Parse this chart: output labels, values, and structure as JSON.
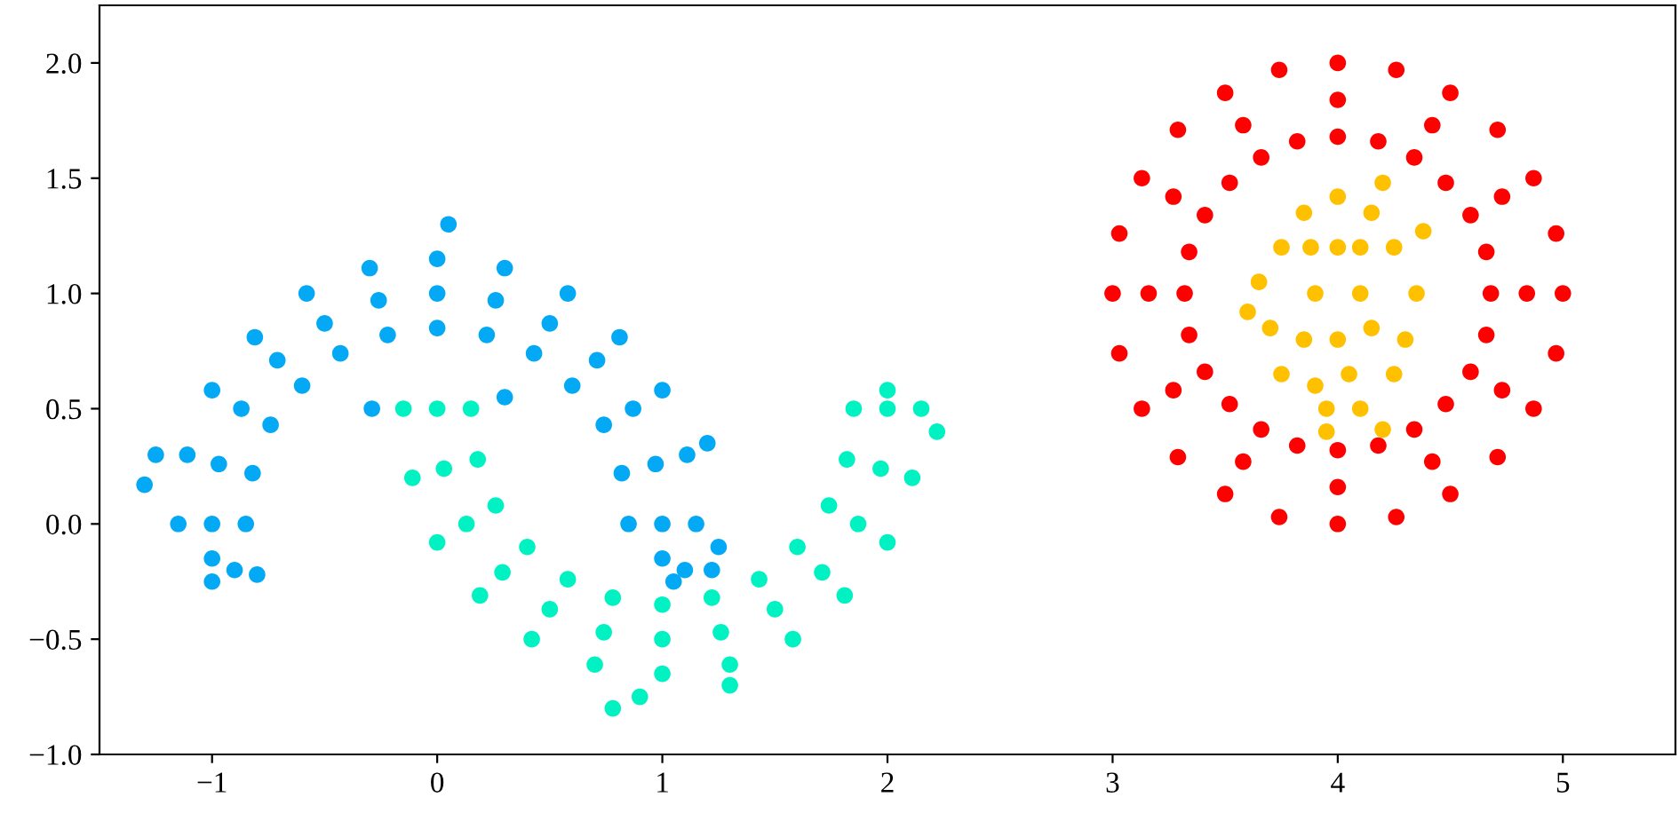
{
  "chart_data": {
    "type": "scatter",
    "marker": "circle",
    "grid": false,
    "xlim": [
      -1.5,
      5.5
    ],
    "ylim": [
      -1.0,
      2.25
    ],
    "xticks": [
      {
        "value": -1,
        "label": "−1"
      },
      0,
      1,
      2,
      3,
      4,
      5
    ],
    "yticks": [
      {
        "value": -1.0,
        "label": "−1.0"
      },
      {
        "value": -0.5,
        "label": "−0.5"
      },
      {
        "value": 0,
        "label": "0.0"
      },
      0.5,
      {
        "value": 1,
        "label": "1.0"
      },
      1.5,
      {
        "value": 2,
        "label": "2.0"
      }
    ],
    "series": [
      {
        "color": "#03a9f4",
        "x": [
          -1,
          -0.97,
          -0.87,
          -0.71,
          -0.5,
          -0.26,
          0,
          0.26,
          0.5,
          0.71,
          0.87,
          0.97,
          1,
          -1.15,
          -1.11,
          -1.0,
          -0.81,
          -0.58,
          -0.3,
          0,
          0.3,
          0.58,
          0.81,
          1.0,
          1.11,
          1.15,
          -0.85,
          -0.82,
          -0.74,
          -0.6,
          -0.43,
          -0.22,
          0,
          0.22,
          0.43,
          0.6,
          0.74,
          0.82,
          0.85,
          -1.3,
          -1.25,
          -1.0,
          -0.8,
          0.05,
          0.3,
          1.2,
          1.25,
          1.22,
          1.05,
          -0.29,
          -1.0,
          1.0,
          -0.9,
          1.1
        ],
        "values": [
          0,
          0.26,
          0.5,
          0.71,
          0.87,
          0.97,
          1,
          0.97,
          0.87,
          0.71,
          0.5,
          0.26,
          0,
          0,
          0.3,
          0.58,
          0.81,
          1.0,
          1.11,
          1.15,
          1.11,
          1.0,
          0.81,
          0.58,
          0.3,
          0,
          0,
          0.22,
          0.43,
          0.6,
          0.74,
          0.82,
          0.85,
          0.82,
          0.74,
          0.6,
          0.43,
          0.22,
          0,
          0.17,
          0.3,
          -0.25,
          -0.22,
          1.3,
          0.55,
          0.35,
          -0.1,
          -0.2,
          -0.25,
          0.5,
          -0.15,
          -0.15,
          -0.2,
          -0.2
        ]
      },
      {
        "color": "#00f2c3",
        "x": [
          0,
          0.03,
          0.13,
          0.29,
          0.5,
          0.74,
          1,
          1.26,
          1.5,
          1.71,
          1.87,
          1.97,
          2,
          -0.15,
          -0.11,
          0,
          0.19,
          0.42,
          0.7,
          1,
          1.3,
          1.58,
          1.81,
          2.0,
          2.11,
          2.15,
          0.15,
          0.18,
          0.26,
          0.4,
          0.58,
          0.78,
          1,
          1.22,
          1.43,
          1.6,
          1.74,
          1.82,
          1.85,
          0.78,
          2.0,
          2.22,
          0.9,
          1.3
        ],
        "values": [
          0.5,
          0.24,
          0,
          -0.21,
          -0.37,
          -0.47,
          -0.5,
          -0.47,
          -0.37,
          -0.21,
          0,
          0.24,
          0.5,
          0.5,
          0.2,
          -0.08,
          -0.31,
          -0.5,
          -0.61,
          -0.65,
          -0.61,
          -0.5,
          -0.31,
          -0.08,
          0.2,
          0.5,
          0.5,
          0.28,
          0.08,
          -0.1,
          -0.24,
          -0.32,
          -0.35,
          -0.32,
          -0.24,
          -0.1,
          0.08,
          0.28,
          0.5,
          -0.8,
          0.58,
          0.4,
          -0.75,
          -0.7
        ]
      },
      {
        "color": "#ff0000",
        "x": [
          5,
          4.97,
          4.87,
          4.71,
          4.5,
          4.26,
          4,
          3.74,
          3.5,
          3.29,
          3.13,
          3.03,
          3,
          3.03,
          3.13,
          3.29,
          3.5,
          3.74,
          4,
          4.26,
          4.5,
          4.71,
          4.87,
          4.97,
          4.68,
          4.66,
          4.59,
          4.48,
          4.34,
          4.18,
          4,
          3.82,
          3.66,
          3.52,
          3.41,
          3.34,
          3.32,
          3.34,
          3.41,
          3.52,
          3.66,
          3.82,
          4,
          4.18,
          4.34,
          4.48,
          4.59,
          4.66,
          4.84,
          4.73,
          4.42,
          4,
          3.58,
          3.27,
          3.16,
          3.27,
          3.58,
          4,
          4.42,
          4.73
        ],
        "values": [
          1,
          1.26,
          1.5,
          1.71,
          1.87,
          1.97,
          2,
          1.97,
          1.87,
          1.71,
          1.5,
          1.26,
          1,
          0.74,
          0.5,
          0.29,
          0.13,
          0.03,
          0,
          0.03,
          0.13,
          0.29,
          0.5,
          0.74,
          1,
          1.18,
          1.34,
          1.48,
          1.59,
          1.66,
          1.68,
          1.66,
          1.59,
          1.48,
          1.34,
          1.18,
          1,
          0.82,
          0.66,
          0.52,
          0.41,
          0.34,
          0.32,
          0.34,
          0.41,
          0.52,
          0.66,
          0.82,
          1,
          1.42,
          1.73,
          1.84,
          1.73,
          1.42,
          1,
          0.58,
          0.27,
          0.16,
          0.27,
          0.58
        ]
      },
      {
        "color": "#ffc000",
        "x": [
          4.0,
          3.85,
          4.15,
          4.2,
          3.75,
          4.25,
          3.65,
          3.6,
          4.35,
          3.7,
          4.3,
          3.75,
          4.25,
          3.95,
          4.1,
          3.95,
          4.2,
          4.0,
          3.9,
          4.1,
          4.0,
          3.85,
          4.15,
          3.9,
          4.05,
          4.1,
          3.88,
          4.38
        ],
        "values": [
          1.42,
          1.35,
          1.35,
          1.48,
          1.2,
          1.2,
          1.05,
          0.92,
          1.0,
          0.85,
          0.8,
          0.65,
          0.65,
          0.5,
          0.5,
          0.4,
          0.41,
          1.2,
          1.0,
          1.0,
          0.8,
          0.8,
          0.85,
          0.6,
          0.65,
          1.2,
          1.2,
          1.27
        ]
      }
    ]
  }
}
